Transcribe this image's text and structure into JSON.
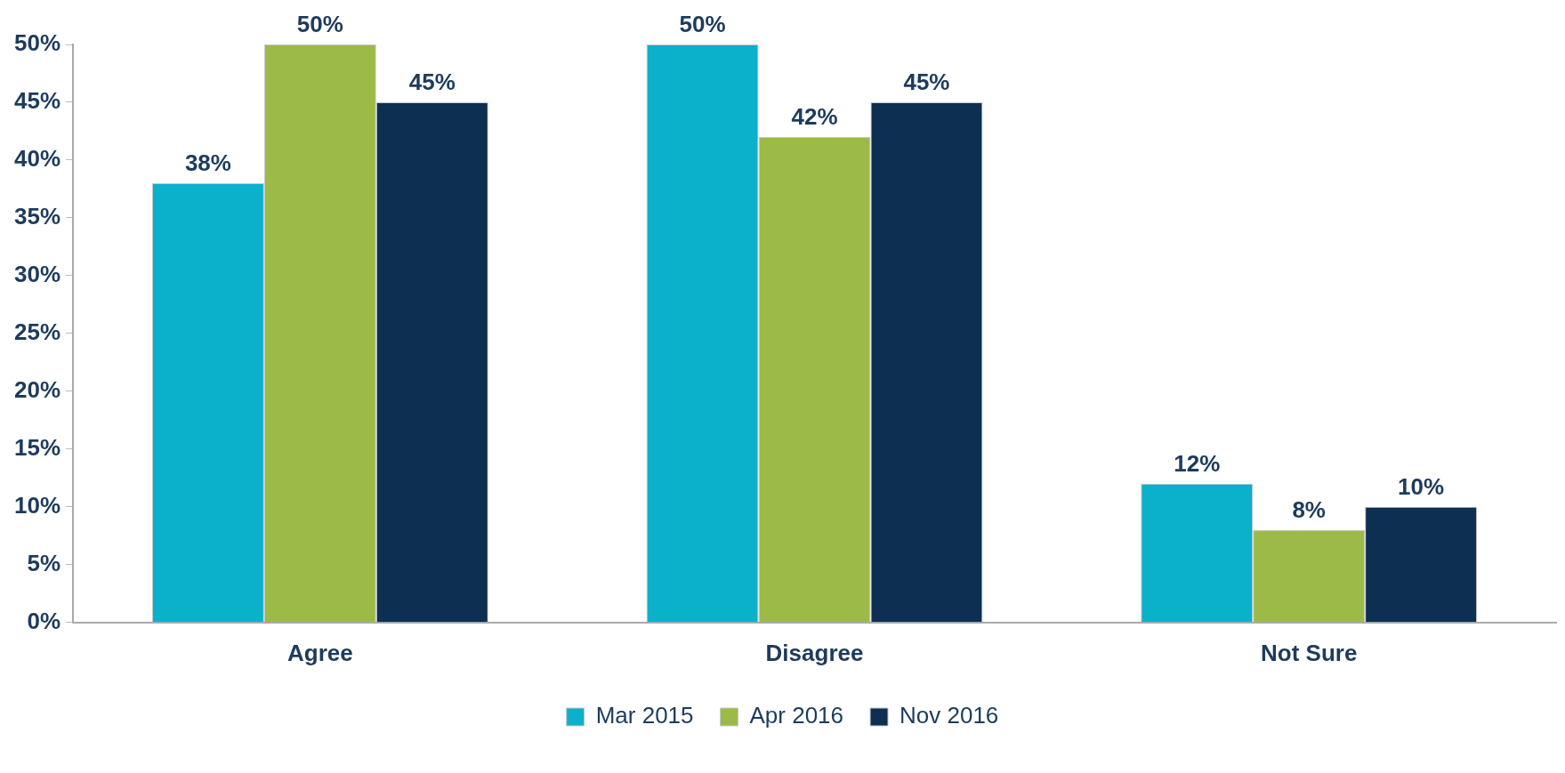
{
  "chart_data": {
    "type": "bar",
    "categories": [
      "Agree",
      "Disagree",
      "Not Sure"
    ],
    "series": [
      {
        "name": "Mar 2015",
        "color": "#0bb0cb",
        "values": [
          38,
          50,
          12
        ],
        "value_labels": [
          "38%",
          "50%",
          "12%"
        ]
      },
      {
        "name": "Apr 2016",
        "color": "#9cba48",
        "values": [
          50,
          42,
          8
        ],
        "value_labels": [
          "50%",
          "42%",
          "8%"
        ]
      },
      {
        "name": "Nov 2016",
        "color": "#0d2f51",
        "values": [
          45,
          45,
          10
        ],
        "value_labels": [
          "45%",
          "45%",
          "10%"
        ]
      }
    ],
    "ylim": [
      0,
      50
    ],
    "yticks": [
      {
        "value": 0,
        "label": "0%"
      },
      {
        "value": 5,
        "label": "5%"
      },
      {
        "value": 10,
        "label": "10%"
      },
      {
        "value": 15,
        "label": "15%"
      },
      {
        "value": 20,
        "label": "20%"
      },
      {
        "value": 25,
        "label": "25%"
      },
      {
        "value": 30,
        "label": "30%"
      },
      {
        "value": 35,
        "label": "35%"
      },
      {
        "value": 40,
        "label": "40%"
      },
      {
        "value": 45,
        "label": "45%"
      },
      {
        "value": 50,
        "label": "50%"
      }
    ],
    "grid": false,
    "legend": "bottom"
  }
}
